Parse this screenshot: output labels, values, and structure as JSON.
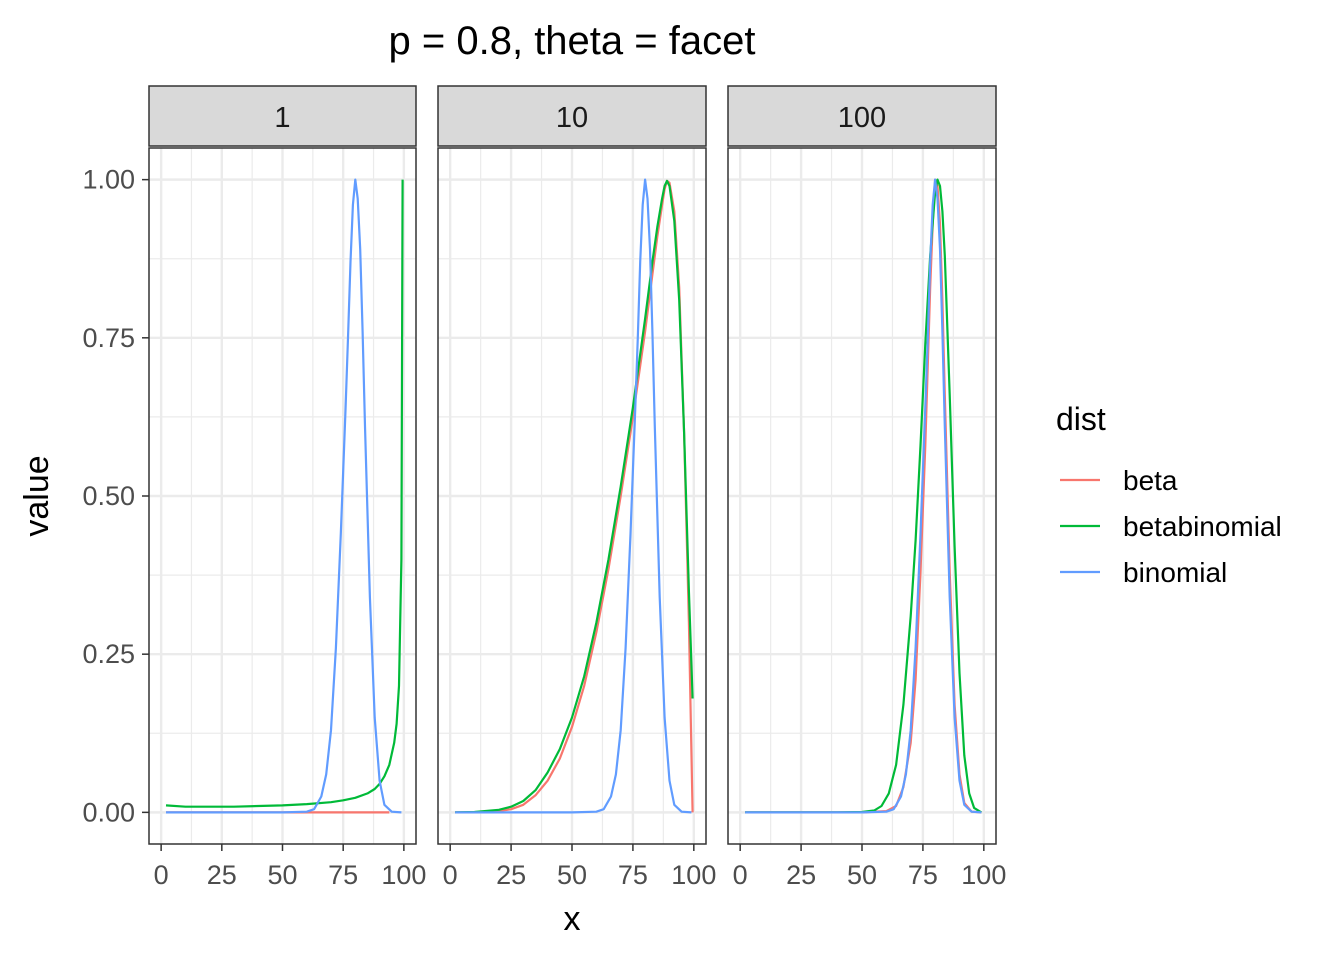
{
  "chart_data": {
    "type": "line",
    "title": "p = 0.8, theta = facet",
    "xlabel": "x",
    "ylabel": "value",
    "xlim": [
      0,
      100
    ],
    "ylim": [
      0,
      1
    ],
    "x_ticks": [
      0,
      25,
      50,
      75,
      100
    ],
    "y_ticks": [
      0.0,
      0.25,
      0.5,
      0.75,
      1.0
    ],
    "y_tick_labels": [
      "0.00",
      "0.25",
      "0.50",
      "0.75",
      "1.00"
    ],
    "grid": true,
    "legend": {
      "title": "dist",
      "placement": "right",
      "entries": [
        {
          "name": "beta",
          "color": "#F8766D"
        },
        {
          "name": "betabinomial",
          "color": "#00BA38"
        },
        {
          "name": "binomial",
          "color": "#619CFF"
        }
      ]
    },
    "facets": [
      {
        "label": "1",
        "series": [
          {
            "name": "beta",
            "color": "#F8766D",
            "points": [
              [
                2,
                0
              ],
              [
                20,
                0
              ],
              [
                40,
                0
              ],
              [
                60,
                0
              ],
              [
                80,
                0
              ],
              [
                90,
                0
              ],
              [
                94,
                0
              ]
            ]
          },
          {
            "name": "betabinomial",
            "color": "#00BA38",
            "points": [
              [
                2,
                0.011
              ],
              [
                10,
                0.009
              ],
              [
                20,
                0.009
              ],
              [
                30,
                0.009
              ],
              [
                40,
                0.01
              ],
              [
                50,
                0.011
              ],
              [
                60,
                0.013
              ],
              [
                70,
                0.016
              ],
              [
                75,
                0.019
              ],
              [
                80,
                0.023
              ],
              [
                85,
                0.03
              ],
              [
                88,
                0.037
              ],
              [
                90,
                0.045
              ],
              [
                92,
                0.057
              ],
              [
                94,
                0.075
              ],
              [
                96,
                0.11
              ],
              [
                97,
                0.14
              ],
              [
                98,
                0.2
              ],
              [
                99,
                0.4
              ],
              [
                99.5,
                1.0
              ]
            ]
          },
          {
            "name": "binomial",
            "color": "#619CFF",
            "points": [
              [
                2,
                0
              ],
              [
                50,
                0
              ],
              [
                60,
                0.001
              ],
              [
                63,
                0.005
              ],
              [
                66,
                0.025
              ],
              [
                68,
                0.06
              ],
              [
                70,
                0.13
              ],
              [
                72,
                0.26
              ],
              [
                74,
                0.44
              ],
              [
                76,
                0.64
              ],
              [
                77,
                0.75
              ],
              [
                78,
                0.87
              ],
              [
                79,
                0.96
              ],
              [
                80,
                1.0
              ],
              [
                81,
                0.97
              ],
              [
                82,
                0.89
              ],
              [
                83,
                0.76
              ],
              [
                84,
                0.61
              ],
              [
                86,
                0.34
              ],
              [
                88,
                0.15
              ],
              [
                90,
                0.05
              ],
              [
                92,
                0.012
              ],
              [
                95,
                0.001
              ],
              [
                99,
                0
              ]
            ]
          }
        ]
      },
      {
        "label": "10",
        "series": [
          {
            "name": "beta",
            "color": "#F8766D",
            "points": [
              [
                2,
                0
              ],
              [
                10,
                0
              ],
              [
                20,
                0.002
              ],
              [
                25,
                0.005
              ],
              [
                30,
                0.012
              ],
              [
                35,
                0.027
              ],
              [
                40,
                0.05
              ],
              [
                45,
                0.085
              ],
              [
                50,
                0.135
              ],
              [
                55,
                0.2
              ],
              [
                60,
                0.285
              ],
              [
                65,
                0.385
              ],
              [
                70,
                0.5
              ],
              [
                75,
                0.625
              ],
              [
                80,
                0.76
              ],
              [
                83,
                0.85
              ],
              [
                85,
                0.91
              ],
              [
                87,
                0.96
              ],
              [
                88,
                0.985
              ],
              [
                89,
                0.998
              ],
              [
                90,
                0.995
              ],
              [
                92,
                0.95
              ],
              [
                94,
                0.83
              ],
              [
                96,
                0.6
              ],
              [
                98,
                0.3
              ],
              [
                99.5,
                0
              ]
            ]
          },
          {
            "name": "betabinomial",
            "color": "#00BA38",
            "points": [
              [
                2,
                0
              ],
              [
                10,
                0.0005
              ],
              [
                20,
                0.004
              ],
              [
                25,
                0.009
              ],
              [
                30,
                0.018
              ],
              [
                35,
                0.035
              ],
              [
                40,
                0.063
              ],
              [
                45,
                0.1
              ],
              [
                50,
                0.15
              ],
              [
                55,
                0.215
              ],
              [
                60,
                0.3
              ],
              [
                65,
                0.4
              ],
              [
                70,
                0.515
              ],
              [
                75,
                0.64
              ],
              [
                80,
                0.78
              ],
              [
                83,
                0.87
              ],
              [
                85,
                0.925
              ],
              [
                87,
                0.97
              ],
              [
                88,
                0.99
              ],
              [
                89,
                0.998
              ],
              [
                90,
                0.99
              ],
              [
                92,
                0.935
              ],
              [
                94,
                0.81
              ],
              [
                96,
                0.6
              ],
              [
                98,
                0.35
              ],
              [
                99.5,
                0.18
              ]
            ]
          },
          {
            "name": "binomial",
            "color": "#619CFF",
            "points": [
              [
                2,
                0
              ],
              [
                50,
                0
              ],
              [
                60,
                0.001
              ],
              [
                63,
                0.005
              ],
              [
                66,
                0.025
              ],
              [
                68,
                0.06
              ],
              [
                70,
                0.13
              ],
              [
                72,
                0.26
              ],
              [
                74,
                0.44
              ],
              [
                76,
                0.64
              ],
              [
                77,
                0.75
              ],
              [
                78,
                0.87
              ],
              [
                79,
                0.96
              ],
              [
                80,
                1.0
              ],
              [
                81,
                0.97
              ],
              [
                82,
                0.89
              ],
              [
                83,
                0.76
              ],
              [
                84,
                0.61
              ],
              [
                86,
                0.34
              ],
              [
                88,
                0.15
              ],
              [
                90,
                0.05
              ],
              [
                92,
                0.012
              ],
              [
                95,
                0.001
              ],
              [
                99,
                0
              ]
            ]
          }
        ]
      },
      {
        "label": "100",
        "series": [
          {
            "name": "beta",
            "color": "#F8766D",
            "points": [
              [
                2,
                0
              ],
              [
                50,
                0
              ],
              [
                60,
                0.002
              ],
              [
                64,
                0.01
              ],
              [
                67,
                0.04
              ],
              [
                70,
                0.11
              ],
              [
                72,
                0.21
              ],
              [
                74,
                0.38
              ],
              [
                76,
                0.58
              ],
              [
                78,
                0.83
              ],
              [
                79,
                0.93
              ],
              [
                80,
                1.0
              ],
              [
                81,
                0.99
              ],
              [
                82,
                0.93
              ],
              [
                83,
                0.81
              ],
              [
                84,
                0.66
              ],
              [
                86,
                0.38
              ],
              [
                88,
                0.17
              ],
              [
                90,
                0.06
              ],
              [
                92,
                0.015
              ],
              [
                95,
                0.001
              ],
              [
                99,
                0
              ]
            ]
          },
          {
            "name": "betabinomial",
            "color": "#00BA38",
            "points": [
              [
                2,
                0
              ],
              [
                40,
                0
              ],
              [
                50,
                0.0005
              ],
              [
                55,
                0.003
              ],
              [
                58,
                0.01
              ],
              [
                61,
                0.03
              ],
              [
                64,
                0.075
              ],
              [
                67,
                0.17
              ],
              [
                70,
                0.31
              ],
              [
                72,
                0.43
              ],
              [
                74,
                0.58
              ],
              [
                76,
                0.74
              ],
              [
                78,
                0.88
              ],
              [
                80,
                0.98
              ],
              [
                81,
                1.0
              ],
              [
                82,
                0.99
              ],
              [
                83,
                0.95
              ],
              [
                84,
                0.88
              ],
              [
                86,
                0.66
              ],
              [
                88,
                0.42
              ],
              [
                90,
                0.22
              ],
              [
                92,
                0.09
              ],
              [
                94,
                0.03
              ],
              [
                96,
                0.007
              ],
              [
                99,
                0
              ]
            ]
          },
          {
            "name": "binomial",
            "color": "#619CFF",
            "points": [
              [
                2,
                0
              ],
              [
                50,
                0
              ],
              [
                60,
                0.001
              ],
              [
                63,
                0.005
              ],
              [
                66,
                0.025
              ],
              [
                68,
                0.06
              ],
              [
                70,
                0.13
              ],
              [
                72,
                0.26
              ],
              [
                74,
                0.44
              ],
              [
                76,
                0.64
              ],
              [
                77,
                0.75
              ],
              [
                78,
                0.87
              ],
              [
                79,
                0.96
              ],
              [
                80,
                1.0
              ],
              [
                81,
                0.97
              ],
              [
                82,
                0.89
              ],
              [
                83,
                0.76
              ],
              [
                84,
                0.61
              ],
              [
                86,
                0.34
              ],
              [
                88,
                0.15
              ],
              [
                90,
                0.05
              ],
              [
                92,
                0.012
              ],
              [
                95,
                0.001
              ],
              [
                99,
                0
              ]
            ]
          }
        ]
      }
    ]
  }
}
